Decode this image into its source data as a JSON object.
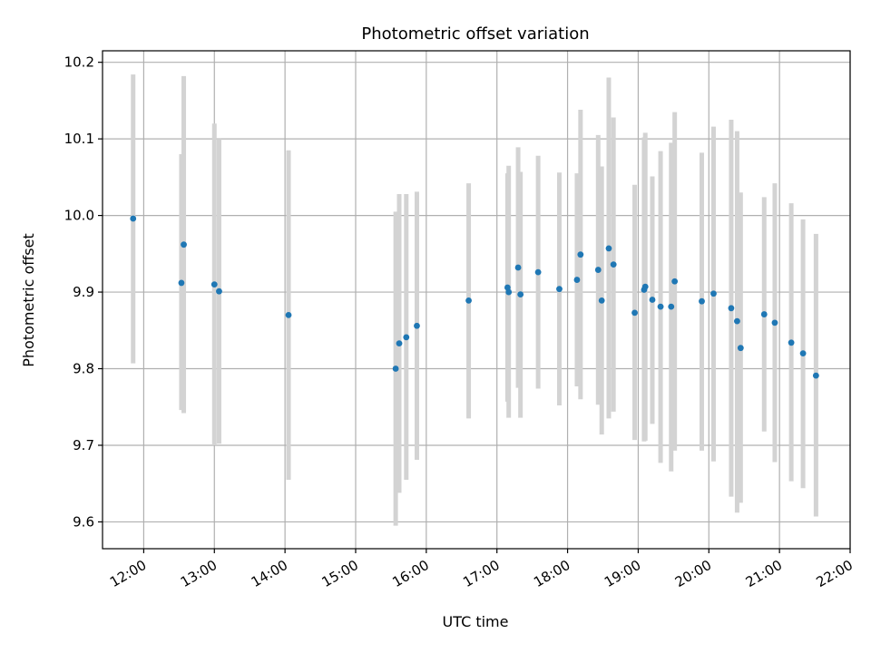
{
  "chart_data": {
    "type": "scatter",
    "title": "Photometric offset variation",
    "xlabel": "UTC time",
    "ylabel": "Photometric offset",
    "grid": true,
    "x_unit": "hour (UTC)",
    "xlim": [
      "11:25",
      "22:00"
    ],
    "ylim": [
      9.565,
      10.215
    ],
    "x_ticks": [
      "12:00",
      "13:00",
      "14:00",
      "15:00",
      "16:00",
      "17:00",
      "18:00",
      "19:00",
      "20:00",
      "21:00",
      "22:00"
    ],
    "y_ticks": [
      "9.6",
      "9.7",
      "9.8",
      "9.9",
      "10.0",
      "10.1",
      "10.2"
    ],
    "marker_color": "#1f77b4",
    "errorbar_color": "#d3d3d3",
    "series": [
      {
        "points": [
          {
            "x": "11:51",
            "y": 9.996,
            "err_low": 9.807,
            "err_high": 10.184
          },
          {
            "x": "12:32",
            "y": 9.912,
            "err_low": 9.746,
            "err_high": 10.08
          },
          {
            "x": "12:34",
            "y": 9.962,
            "err_low": 9.742,
            "err_high": 10.182
          },
          {
            "x": "13:00",
            "y": 9.91,
            "err_low": 9.7,
            "err_high": 10.12
          },
          {
            "x": "13:04",
            "y": 9.901,
            "err_low": 9.702,
            "err_high": 10.1
          },
          {
            "x": "14:03",
            "y": 9.87,
            "err_low": 9.655,
            "err_high": 10.085
          },
          {
            "x": "15:34",
            "y": 9.8,
            "err_low": 9.595,
            "err_high": 10.005
          },
          {
            "x": "15:37",
            "y": 9.833,
            "err_low": 9.638,
            "err_high": 10.028
          },
          {
            "x": "15:43",
            "y": 9.841,
            "err_low": 9.655,
            "err_high": 10.028
          },
          {
            "x": "15:52",
            "y": 9.856,
            "err_low": 9.681,
            "err_high": 10.031
          },
          {
            "x": "16:36",
            "y": 9.889,
            "err_low": 9.735,
            "err_high": 10.042
          },
          {
            "x": "17:09",
            "y": 9.906,
            "err_low": 9.757,
            "err_high": 10.055
          },
          {
            "x": "17:10",
            "y": 9.9,
            "err_low": 9.736,
            "err_high": 10.065
          },
          {
            "x": "17:18",
            "y": 9.932,
            "err_low": 9.775,
            "err_high": 10.089
          },
          {
            "x": "17:20",
            "y": 9.897,
            "err_low": 9.736,
            "err_high": 10.057
          },
          {
            "x": "17:35",
            "y": 9.926,
            "err_low": 9.774,
            "err_high": 10.078
          },
          {
            "x": "17:53",
            "y": 9.904,
            "err_low": 9.752,
            "err_high": 10.056
          },
          {
            "x": "18:08",
            "y": 9.916,
            "err_low": 9.777,
            "err_high": 10.055
          },
          {
            "x": "18:11",
            "y": 9.949,
            "err_low": 9.76,
            "err_high": 10.138
          },
          {
            "x": "18:26",
            "y": 9.929,
            "err_low": 9.753,
            "err_high": 10.105
          },
          {
            "x": "18:29",
            "y": 9.889,
            "err_low": 9.714,
            "err_high": 10.064
          },
          {
            "x": "18:35",
            "y": 9.957,
            "err_low": 9.735,
            "err_high": 10.18
          },
          {
            "x": "18:39",
            "y": 9.936,
            "err_low": 9.744,
            "err_high": 10.128
          },
          {
            "x": "18:57",
            "y": 9.873,
            "err_low": 9.707,
            "err_high": 10.04
          },
          {
            "x": "19:05",
            "y": 9.903,
            "err_low": 9.705,
            "err_high": 10.102
          },
          {
            "x": "19:06",
            "y": 9.907,
            "err_low": 9.706,
            "err_high": 10.108
          },
          {
            "x": "19:12",
            "y": 9.89,
            "err_low": 9.728,
            "err_high": 10.051
          },
          {
            "x": "19:19",
            "y": 9.881,
            "err_low": 9.677,
            "err_high": 10.084
          },
          {
            "x": "19:28",
            "y": 9.881,
            "err_low": 9.666,
            "err_high": 10.095
          },
          {
            "x": "19:31",
            "y": 9.914,
            "err_low": 9.693,
            "err_high": 10.135
          },
          {
            "x": "19:54",
            "y": 9.888,
            "err_low": 9.693,
            "err_high": 10.082
          },
          {
            "x": "20:04",
            "y": 9.898,
            "err_low": 9.679,
            "err_high": 10.116
          },
          {
            "x": "20:19",
            "y": 9.879,
            "err_low": 9.633,
            "err_high": 10.125
          },
          {
            "x": "20:24",
            "y": 9.862,
            "err_low": 9.612,
            "err_high": 10.11
          },
          {
            "x": "20:27",
            "y": 9.827,
            "err_low": 9.625,
            "err_high": 10.03
          },
          {
            "x": "20:47",
            "y": 9.871,
            "err_low": 9.718,
            "err_high": 10.024
          },
          {
            "x": "20:56",
            "y": 9.86,
            "err_low": 9.678,
            "err_high": 10.042
          },
          {
            "x": "21:10",
            "y": 9.834,
            "err_low": 9.653,
            "err_high": 10.016
          },
          {
            "x": "21:20",
            "y": 9.82,
            "err_low": 9.644,
            "err_high": 9.995
          },
          {
            "x": "21:31",
            "y": 9.791,
            "err_low": 9.607,
            "err_high": 9.976
          }
        ]
      }
    ]
  }
}
